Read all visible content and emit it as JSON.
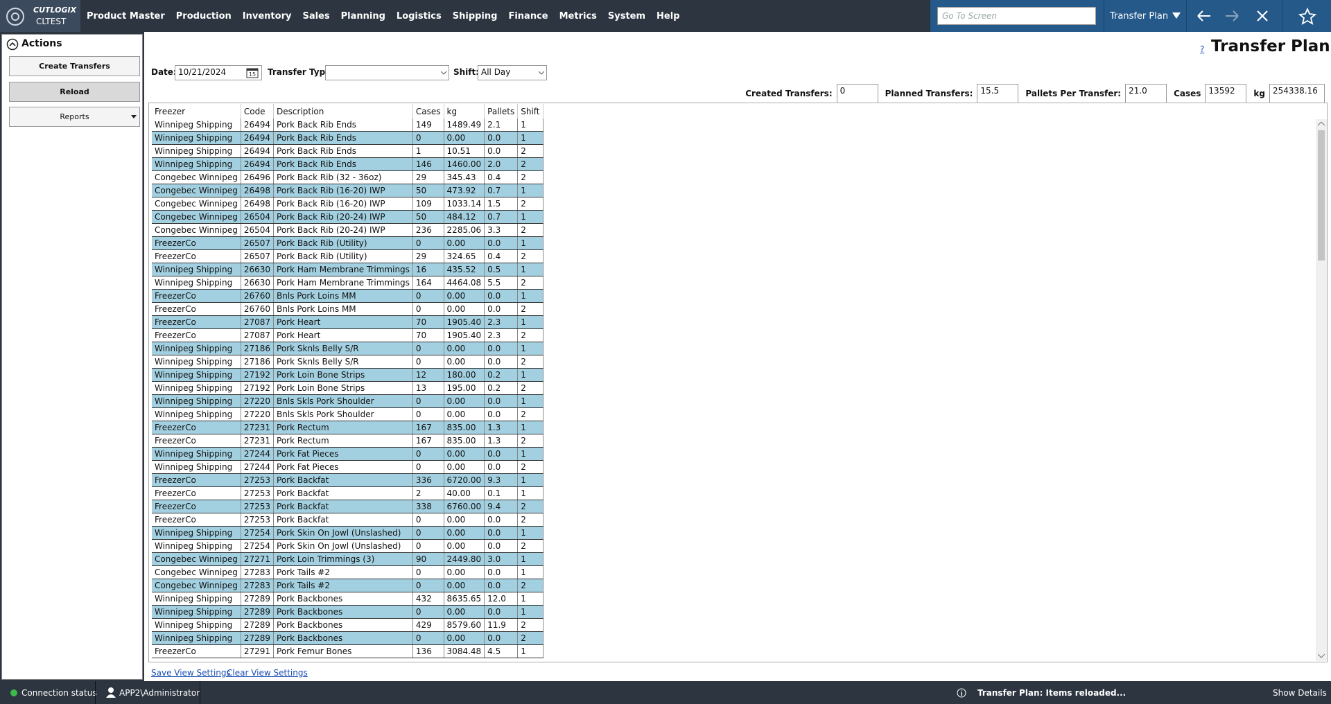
{
  "header": {
    "logo_brand": "CUTLOGIX",
    "logo_env": "CLTEST",
    "menu": [
      "Product Master",
      "Production",
      "Inventory",
      "Sales",
      "Planning",
      "Logistics",
      "Shipping",
      "Finance",
      "Metrics",
      "System",
      "Help"
    ],
    "search_placeholder": "Go To Screen",
    "screen_selector": "Transfer Plan"
  },
  "actions": {
    "title": "Actions",
    "buttons": [
      "Create Transfers",
      "Reload",
      "Reports"
    ]
  },
  "page": {
    "title": "Transfer Plan",
    "help": "?",
    "filters": {
      "date_label": "Date:",
      "date": "10/21/2024",
      "date_icon": "15",
      "transfer_type_label": "Transfer Type:",
      "shift_label": "Shift:",
      "shift": "All Day"
    },
    "summary": [
      {
        "label": "Created Transfers:",
        "value": "0"
      },
      {
        "label": "Planned Transfers:",
        "value": "15.5"
      },
      {
        "label": "Pallets Per Transfer:",
        "value": "21.0"
      },
      {
        "label": "Cases",
        "value": "13592"
      },
      {
        "label": "kg",
        "value": "254338.16"
      }
    ]
  },
  "table": {
    "columns": [
      "Freezer",
      "Code",
      "Description",
      "Cases",
      "kg",
      "Pallets",
      "Shift"
    ],
    "rows": [
      [
        "Winnipeg Shipping",
        "26494",
        "Pork Back Rib Ends",
        "149",
        "1489.49",
        "2.1",
        "1"
      ],
      [
        "Winnipeg Shipping",
        "26494",
        "Pork Back Rib Ends",
        "0",
        "0.00",
        "0.0",
        "1"
      ],
      [
        "Winnipeg Shipping",
        "26494",
        "Pork Back Rib Ends",
        "1",
        "10.51",
        "0.0",
        "2"
      ],
      [
        "Winnipeg Shipping",
        "26494",
        "Pork Back Rib Ends",
        "146",
        "1460.00",
        "2.0",
        "2"
      ],
      [
        "Congebec Winnipeg",
        "26496",
        "Pork Back Rib (32 - 36oz)",
        "29",
        "345.43",
        "0.4",
        "2"
      ],
      [
        "Congebec Winnipeg",
        "26498",
        "Pork Back Rib (16-20) IWP",
        "50",
        "473.92",
        "0.7",
        "1"
      ],
      [
        "Congebec Winnipeg",
        "26498",
        "Pork Back Rib (16-20) IWP",
        "109",
        "1033.14",
        "1.5",
        "2"
      ],
      [
        "Congebec Winnipeg",
        "26504",
        "Pork Back Rib (20-24) IWP",
        "50",
        "484.12",
        "0.7",
        "1"
      ],
      [
        "Congebec Winnipeg",
        "26504",
        "Pork Back Rib (20-24) IWP",
        "236",
        "2285.06",
        "3.3",
        "2"
      ],
      [
        "FreezerCo",
        "26507",
        "Pork Back Rib (Utility)",
        "0",
        "0.00",
        "0.0",
        "1"
      ],
      [
        "FreezerCo",
        "26507",
        "Pork Back Rib (Utility)",
        "29",
        "324.65",
        "0.4",
        "2"
      ],
      [
        "Winnipeg Shipping",
        "26630",
        "Pork Ham Membrane Trimmings",
        "16",
        "435.52",
        "0.5",
        "1"
      ],
      [
        "Winnipeg Shipping",
        "26630",
        "Pork Ham Membrane Trimmings",
        "164",
        "4464.08",
        "5.5",
        "2"
      ],
      [
        "FreezerCo",
        "26760",
        "Bnls Pork Loins MM",
        "0",
        "0.00",
        "0.0",
        "1"
      ],
      [
        "FreezerCo",
        "26760",
        "Bnls Pork Loins MM",
        "0",
        "0.00",
        "0.0",
        "2"
      ],
      [
        "FreezerCo",
        "27087",
        "Pork Heart",
        "70",
        "1905.40",
        "2.3",
        "1"
      ],
      [
        "FreezerCo",
        "27087",
        "Pork Heart",
        "70",
        "1905.40",
        "2.3",
        "2"
      ],
      [
        "Winnipeg Shipping",
        "27186",
        "Pork Sknls Belly S/R",
        "0",
        "0.00",
        "0.0",
        "1"
      ],
      [
        "Winnipeg Shipping",
        "27186",
        "Pork Sknls Belly S/R",
        "0",
        "0.00",
        "0.0",
        "2"
      ],
      [
        "Winnipeg Shipping",
        "27192",
        "Pork Loin Bone Strips",
        "12",
        "180.00",
        "0.2",
        "1"
      ],
      [
        "Winnipeg Shipping",
        "27192",
        "Pork Loin Bone Strips",
        "13",
        "195.00",
        "0.2",
        "2"
      ],
      [
        "Winnipeg Shipping",
        "27220",
        "Bnls Skls Pork Shoulder",
        "0",
        "0.00",
        "0.0",
        "1"
      ],
      [
        "Winnipeg Shipping",
        "27220",
        "Bnls Skls Pork Shoulder",
        "0",
        "0.00",
        "0.0",
        "2"
      ],
      [
        "FreezerCo",
        "27231",
        "Pork Rectum",
        "167",
        "835.00",
        "1.3",
        "1"
      ],
      [
        "FreezerCo",
        "27231",
        "Pork Rectum",
        "167",
        "835.00",
        "1.3",
        "2"
      ],
      [
        "Winnipeg Shipping",
        "27244",
        "Pork Fat Pieces",
        "0",
        "0.00",
        "0.0",
        "1"
      ],
      [
        "Winnipeg Shipping",
        "27244",
        "Pork Fat Pieces",
        "0",
        "0.00",
        "0.0",
        "2"
      ],
      [
        "FreezerCo",
        "27253",
        "Pork Backfat",
        "336",
        "6720.00",
        "9.3",
        "1"
      ],
      [
        "FreezerCo",
        "27253",
        "Pork Backfat",
        "2",
        "40.00",
        "0.1",
        "1"
      ],
      [
        "FreezerCo",
        "27253",
        "Pork Backfat",
        "338",
        "6760.00",
        "9.4",
        "2"
      ],
      [
        "FreezerCo",
        "27253",
        "Pork Backfat",
        "0",
        "0.00",
        "0.0",
        "2"
      ],
      [
        "Winnipeg Shipping",
        "27254",
        "Pork Skin On Jowl (Unslashed)",
        "0",
        "0.00",
        "0.0",
        "1"
      ],
      [
        "Winnipeg Shipping",
        "27254",
        "Pork Skin On Jowl (Unslashed)",
        "0",
        "0.00",
        "0.0",
        "2"
      ],
      [
        "Congebec Winnipeg",
        "27271",
        "Pork Loin Trimmings (3)",
        "90",
        "2449.80",
        "3.0",
        "1"
      ],
      [
        "Congebec Winnipeg",
        "27283",
        "Pork Tails #2",
        "0",
        "0.00",
        "0.0",
        "1"
      ],
      [
        "Congebec Winnipeg",
        "27283",
        "Pork Tails #2",
        "0",
        "0.00",
        "0.0",
        "2"
      ],
      [
        "Winnipeg Shipping",
        "27289",
        "Pork Backbones",
        "432",
        "8635.65",
        "12.0",
        "1"
      ],
      [
        "Winnipeg Shipping",
        "27289",
        "Pork Backbones",
        "0",
        "0.00",
        "0.0",
        "1"
      ],
      [
        "Winnipeg Shipping",
        "27289",
        "Pork Backbones",
        "429",
        "8579.60",
        "11.9",
        "2"
      ],
      [
        "Winnipeg Shipping",
        "27289",
        "Pork Backbones",
        "0",
        "0.00",
        "0.0",
        "2"
      ],
      [
        "FreezerCo",
        "27291",
        "Pork Femur Bones",
        "136",
        "3084.48",
        "4.5",
        "1"
      ]
    ]
  },
  "footer": {
    "links": [
      "Save View Settings",
      "Clear View Settings"
    ]
  },
  "status": {
    "connection": "Connection status",
    "user": "APP2\\Administrator",
    "message": "Transfer Plan: Items reloaded...",
    "details": "Show Details"
  }
}
